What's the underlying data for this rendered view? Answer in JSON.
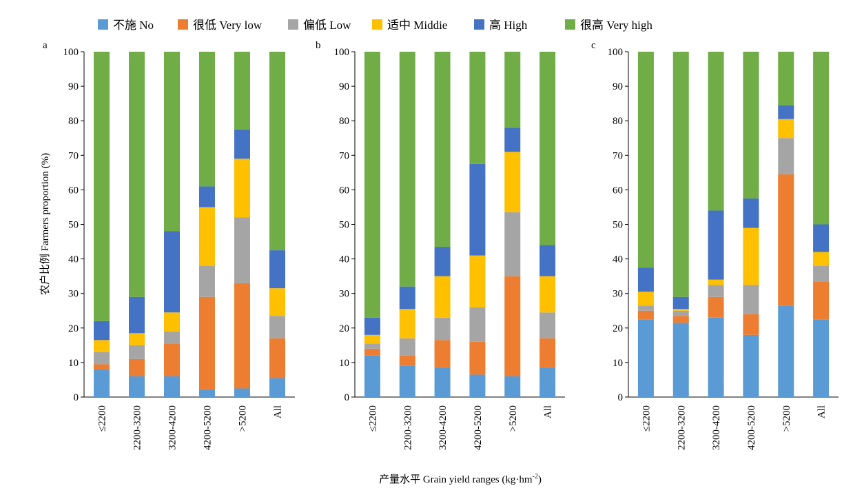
{
  "chart_data": {
    "type": "bar",
    "stacked": true,
    "ylabel": "农户比例 Farmers proportion (%)",
    "xlabel": "产量水平 Grain yield ranges (kg·hm",
    "xlabel_sup": "-2",
    "xlabel_tail": ")",
    "ylim": [
      0,
      100
    ],
    "yticks": [
      "0",
      "10",
      "20",
      "30",
      "40",
      "50",
      "60",
      "70",
      "80",
      "90",
      "100"
    ],
    "categories": [
      "≤2200",
      "2200-3200",
      "3200-4200",
      "4200-5200",
      ">5200",
      "All"
    ],
    "legend_placement": "top",
    "series": [
      {
        "name": "不施 No",
        "color": "#5B9BD5"
      },
      {
        "name": "很低 Very low",
        "color": "#ED7D31"
      },
      {
        "name": "偏低 Low",
        "color": "#A5A5A5"
      },
      {
        "name": "适中 Middie",
        "color": "#FFC000"
      },
      {
        "name": "高 High",
        "color": "#4472C4"
      },
      {
        "name": "很高 Very high",
        "color": "#70AD47"
      }
    ],
    "panels": [
      {
        "label": "a",
        "values": [
          [
            8,
            1.5,
            3.5,
            3.5,
            5.5,
            78
          ],
          [
            6,
            5,
            4,
            3.5,
            10.5,
            71
          ],
          [
            6,
            9.5,
            3.5,
            5.5,
            23.5,
            52
          ],
          [
            2,
            27,
            9,
            17,
            6,
            39
          ],
          [
            2.5,
            30.5,
            19,
            17,
            8.5,
            22.5
          ],
          [
            5.5,
            11.5,
            6.5,
            8,
            11,
            57.5
          ]
        ]
      },
      {
        "label": "b",
        "values": [
          [
            12,
            2,
            1.5,
            2.5,
            5,
            77
          ],
          [
            9,
            3,
            5,
            8.5,
            6.5,
            68
          ],
          [
            8.5,
            8,
            6.5,
            12,
            8.5,
            56.5
          ],
          [
            6.5,
            9.5,
            10,
            15,
            26.5,
            32.5
          ],
          [
            6,
            29,
            18.5,
            17.5,
            7,
            22
          ],
          [
            8.5,
            8.5,
            7.5,
            10.5,
            9,
            56
          ]
        ]
      },
      {
        "label": "c",
        "values": [
          [
            22.5,
            2.5,
            1.5,
            4,
            7,
            62.5
          ],
          [
            21.5,
            2,
            1.5,
            0.5,
            3.5,
            71
          ],
          [
            23,
            6,
            3.5,
            1.5,
            20,
            46
          ],
          [
            18,
            6,
            8.5,
            16.5,
            8.5,
            42.5
          ],
          [
            26.5,
            38,
            10.5,
            5.5,
            4,
            15.5
          ],
          [
            22.5,
            11,
            4.5,
            4,
            8,
            50
          ]
        ]
      }
    ]
  }
}
